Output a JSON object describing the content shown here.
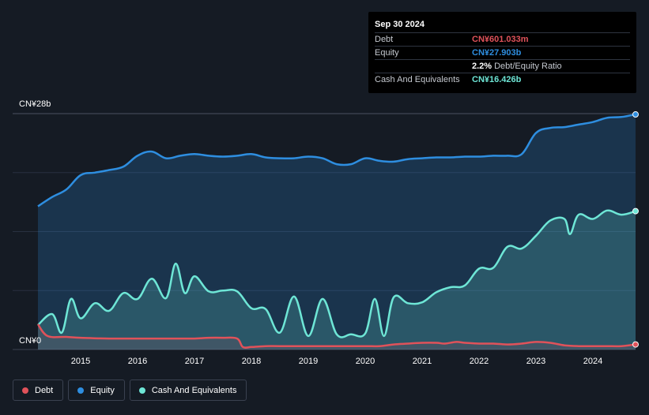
{
  "tooltip": {
    "date": "Sep 30 2024",
    "debt_label": "Debt",
    "debt_value": "CN¥601.033m",
    "equity_label": "Equity",
    "equity_value": "CN¥27.903b",
    "ratio_value": "2.2%",
    "ratio_label": "Debt/Equity Ratio",
    "cash_label": "Cash And Equivalents",
    "cash_value": "CN¥16.426b"
  },
  "legend": {
    "debt": "Debt",
    "equity": "Equity",
    "cash": "Cash And Equivalents"
  },
  "colors": {
    "debt": "#e0525a",
    "equity": "#2e8ee0",
    "cash": "#6ee6d6"
  },
  "chart_data": {
    "type": "area",
    "y_top_label": "CN¥28b",
    "y_bottom_label": "CN¥0",
    "ylim": [
      0,
      28
    ],
    "xlim": [
      2014.25,
      2024.75
    ],
    "x_ticks": [
      "2015",
      "2016",
      "2017",
      "2018",
      "2019",
      "2020",
      "2021",
      "2022",
      "2023",
      "2024"
    ],
    "grid": true,
    "legend_position": "bottom-left",
    "series": [
      {
        "name": "Equity",
        "points": [
          [
            2014.25,
            17.0
          ],
          [
            2014.5,
            18.1
          ],
          [
            2014.75,
            19.0
          ],
          [
            2015.0,
            20.7
          ],
          [
            2015.25,
            21.0
          ],
          [
            2015.5,
            21.3
          ],
          [
            2015.75,
            21.7
          ],
          [
            2016.0,
            23.0
          ],
          [
            2016.25,
            23.5
          ],
          [
            2016.5,
            22.7
          ],
          [
            2016.75,
            23.0
          ],
          [
            2017.0,
            23.2
          ],
          [
            2017.25,
            23.0
          ],
          [
            2017.5,
            22.9
          ],
          [
            2017.75,
            23.0
          ],
          [
            2018.0,
            23.2
          ],
          [
            2018.25,
            22.8
          ],
          [
            2018.5,
            22.7
          ],
          [
            2018.75,
            22.7
          ],
          [
            2019.0,
            22.9
          ],
          [
            2019.25,
            22.7
          ],
          [
            2019.5,
            22.0
          ],
          [
            2019.75,
            22.0
          ],
          [
            2020.0,
            22.7
          ],
          [
            2020.25,
            22.4
          ],
          [
            2020.5,
            22.3
          ],
          [
            2020.75,
            22.6
          ],
          [
            2021.0,
            22.7
          ],
          [
            2021.25,
            22.8
          ],
          [
            2021.5,
            22.8
          ],
          [
            2021.75,
            22.9
          ],
          [
            2022.0,
            22.9
          ],
          [
            2022.25,
            23.0
          ],
          [
            2022.5,
            23.0
          ],
          [
            2022.75,
            23.2
          ],
          [
            2023.0,
            25.7
          ],
          [
            2023.25,
            26.3
          ],
          [
            2023.5,
            26.4
          ],
          [
            2023.75,
            26.7
          ],
          [
            2024.0,
            27.0
          ],
          [
            2024.25,
            27.5
          ],
          [
            2024.5,
            27.6
          ],
          [
            2024.75,
            27.903
          ]
        ]
      },
      {
        "name": "Cash And Equivalents",
        "points": [
          [
            2014.25,
            2.9
          ],
          [
            2014.5,
            4.2
          ],
          [
            2014.67,
            2.0
          ],
          [
            2014.83,
            6.0
          ],
          [
            2015.0,
            3.7
          ],
          [
            2015.25,
            5.5
          ],
          [
            2015.5,
            4.6
          ],
          [
            2015.75,
            6.7
          ],
          [
            2016.0,
            6.0
          ],
          [
            2016.25,
            8.4
          ],
          [
            2016.5,
            6.1
          ],
          [
            2016.67,
            10.2
          ],
          [
            2016.83,
            6.7
          ],
          [
            2017.0,
            8.7
          ],
          [
            2017.25,
            6.9
          ],
          [
            2017.5,
            7.0
          ],
          [
            2017.75,
            6.9
          ],
          [
            2018.0,
            4.9
          ],
          [
            2018.25,
            4.8
          ],
          [
            2018.5,
            2.0
          ],
          [
            2018.75,
            6.3
          ],
          [
            2019.0,
            1.6
          ],
          [
            2019.25,
            6.0
          ],
          [
            2019.5,
            1.8
          ],
          [
            2019.75,
            1.8
          ],
          [
            2020.0,
            1.9
          ],
          [
            2020.17,
            6.0
          ],
          [
            2020.33,
            1.6
          ],
          [
            2020.5,
            6.2
          ],
          [
            2020.75,
            5.5
          ],
          [
            2021.0,
            5.6
          ],
          [
            2021.25,
            6.8
          ],
          [
            2021.5,
            7.4
          ],
          [
            2021.75,
            7.6
          ],
          [
            2022.0,
            9.6
          ],
          [
            2022.25,
            9.7
          ],
          [
            2022.5,
            12.2
          ],
          [
            2022.75,
            12.0
          ],
          [
            2023.0,
            13.5
          ],
          [
            2023.25,
            15.3
          ],
          [
            2023.5,
            15.5
          ],
          [
            2023.6,
            13.7
          ],
          [
            2023.75,
            16.0
          ],
          [
            2024.0,
            15.5
          ],
          [
            2024.25,
            16.5
          ],
          [
            2024.5,
            16.0
          ],
          [
            2024.75,
            16.426
          ]
        ]
      },
      {
        "name": "Debt",
        "points": [
          [
            2014.25,
            3.0
          ],
          [
            2014.42,
            1.6
          ],
          [
            2014.75,
            1.5
          ],
          [
            2015.0,
            1.4
          ],
          [
            2015.5,
            1.3
          ],
          [
            2016.0,
            1.3
          ],
          [
            2016.5,
            1.3
          ],
          [
            2017.0,
            1.3
          ],
          [
            2017.25,
            1.4
          ],
          [
            2017.5,
            1.4
          ],
          [
            2017.75,
            1.3
          ],
          [
            2017.85,
            0.3
          ],
          [
            2018.0,
            0.3
          ],
          [
            2018.25,
            0.4
          ],
          [
            2018.5,
            0.4
          ],
          [
            2019.0,
            0.4
          ],
          [
            2019.5,
            0.4
          ],
          [
            2020.0,
            0.4
          ],
          [
            2020.25,
            0.4
          ],
          [
            2020.5,
            0.6
          ],
          [
            2020.75,
            0.7
          ],
          [
            2021.0,
            0.8
          ],
          [
            2021.25,
            0.8
          ],
          [
            2021.4,
            0.7
          ],
          [
            2021.6,
            0.9
          ],
          [
            2021.75,
            0.8
          ],
          [
            2022.0,
            0.7
          ],
          [
            2022.25,
            0.7
          ],
          [
            2022.5,
            0.6
          ],
          [
            2022.75,
            0.7
          ],
          [
            2023.0,
            0.9
          ],
          [
            2023.25,
            0.8
          ],
          [
            2023.5,
            0.5
          ],
          [
            2023.75,
            0.4
          ],
          [
            2024.0,
            0.4
          ],
          [
            2024.25,
            0.4
          ],
          [
            2024.5,
            0.4
          ],
          [
            2024.75,
            0.601
          ]
        ]
      }
    ]
  }
}
